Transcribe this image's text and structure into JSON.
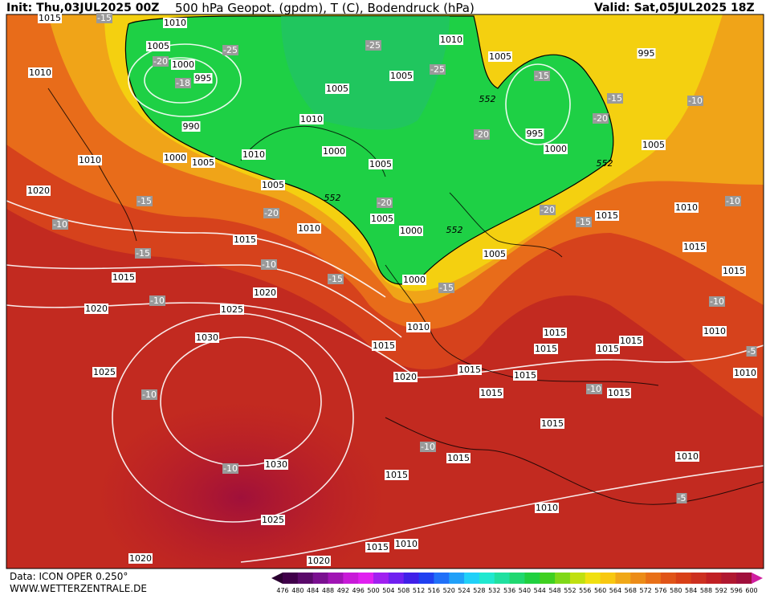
{
  "header": {
    "init": "Init: Thu,03JUL2025 00Z",
    "title": "500 hPa Geopot. (gpdm), T (C), Bodendruck (hPa)",
    "valid": "Valid: Sat,05JUL2025 18Z"
  },
  "footer": {
    "data": "Data: ICON OPER 0.250°",
    "site": "WWW.WETTERZENTRALE.DE"
  },
  "colorbar": {
    "ticks": [
      476,
      480,
      484,
      488,
      492,
      496,
      500,
      504,
      508,
      512,
      516,
      520,
      524,
      528,
      532,
      536,
      540,
      544,
      548,
      552,
      556,
      560,
      564,
      568,
      572,
      576,
      580,
      584,
      588,
      592,
      596,
      600
    ]
  },
  "map": {
    "isobars": [
      "1015",
      "1010",
      "1005",
      "1000",
      "995",
      "990",
      "1010",
      "1010",
      "1000",
      "1005",
      "1010",
      "1005",
      "1010",
      "1005",
      "995",
      "1005",
      "1005",
      "1010",
      "1000",
      "1005",
      "1005",
      "1000",
      "1000",
      "995",
      "1000",
      "1005",
      "1010",
      "1015",
      "1020",
      "1015",
      "1010",
      "1015",
      "1020",
      "1020",
      "1025",
      "1030",
      "1025",
      "1030",
      "1025",
      "1020",
      "1020",
      "1015",
      "1010",
      "1020",
      "1015",
      "1015",
      "1015",
      "1015",
      "1015",
      "1015",
      "1015",
      "1010",
      "1010",
      "1015",
      "1015",
      "1015",
      "1015",
      "1010",
      "1010",
      "1015",
      "1010",
      "1005",
      "1015",
      "1015"
    ],
    "temps": [
      "-15",
      "-20",
      "-25",
      "-18",
      "-25",
      "-25",
      "-15",
      "-15",
      "-10",
      "-20",
      "-20",
      "-20",
      "-20",
      "-20",
      "-15",
      "-10",
      "-15",
      "-10",
      "-15",
      "-10",
      "-15",
      "-15",
      "-10",
      "-10",
      "-5",
      "-10",
      "-10",
      "-10",
      "-10",
      "-5"
    ],
    "geopot": [
      "552",
      "552",
      "552",
      "552"
    ]
  }
}
